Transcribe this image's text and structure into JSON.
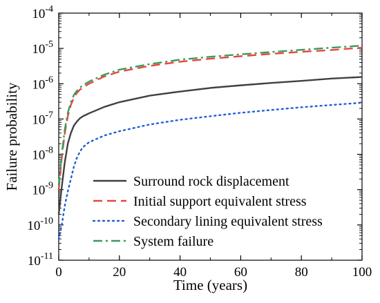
{
  "chart_data": {
    "type": "line",
    "title": "",
    "xlabel": "Time (years)",
    "ylabel": "Failure probability",
    "xlim": [
      0,
      100
    ],
    "ylim_exponent": [
      -11,
      -4
    ],
    "y_scale": "log",
    "xticks": [
      0,
      20,
      40,
      60,
      80,
      100
    ],
    "xtick_labels": [
      "0",
      "20",
      "40",
      "60",
      "80",
      "100"
    ],
    "ytick_base": "10",
    "ytick_exponents": [
      "-11",
      "-10",
      "-9",
      "-8",
      "-7",
      "-6",
      "-5",
      "-4"
    ],
    "grid": false,
    "legend_position": "lower-right",
    "series": [
      {
        "name": "Surround rock displacement",
        "color": "#404040",
        "dash": "solid",
        "x": [
          0,
          1,
          2,
          3,
          4,
          5,
          6,
          7,
          8,
          10,
          15,
          20,
          30,
          40,
          50,
          60,
          70,
          80,
          90,
          100
        ],
        "y": [
          2e-10,
          1.2e-09,
          6e-09,
          2e-08,
          4e-08,
          6.5e-08,
          8.5e-08,
          1.05e-07,
          1.2e-07,
          1.45e-07,
          2.2e-07,
          3e-07,
          4.6e-07,
          6e-07,
          7.6e-07,
          9e-07,
          1.05e-06,
          1.2e-06,
          1.4e-06,
          1.55e-06
        ]
      },
      {
        "name": "Initial support equivalent stress",
        "color": "#e8453c",
        "dash": "dashed",
        "x": [
          0,
          1,
          2,
          3,
          4,
          5,
          6,
          7,
          8,
          10,
          15,
          20,
          30,
          40,
          50,
          60,
          70,
          80,
          90,
          100
        ],
        "y": [
          1e-09,
          8e-09,
          4e-08,
          1.2e-07,
          2.5e-07,
          4e-07,
          5.5e-07,
          6.8e-07,
          7.8e-07,
          1e-06,
          1.6e-06,
          2.2e-06,
          3.2e-06,
          4.2e-06,
          5.1e-06,
          6e-06,
          7e-06,
          8e-06,
          9e-06,
          1.05e-05
        ]
      },
      {
        "name": "Secondary lining equivalent stress",
        "color": "#1f5fd6",
        "dash": "dotted",
        "x": [
          0,
          1,
          2,
          3,
          4,
          5,
          6,
          7,
          8,
          10,
          15,
          20,
          30,
          40,
          50,
          60,
          70,
          80,
          90,
          100
        ],
        "y": [
          4e-11,
          1e-10,
          3.5e-10,
          9e-10,
          2e-09,
          4.5e-09,
          8e-09,
          1.2e-08,
          1.6e-08,
          2.2e-08,
          3.4e-08,
          4.5e-08,
          7e-08,
          9.5e-08,
          1.2e-07,
          1.5e-07,
          1.8e-07,
          2.15e-07,
          2.5e-07,
          2.9e-07
        ]
      },
      {
        "name": "System failure",
        "color": "#3a9a5b",
        "dash": "dash-dot",
        "x": [
          0,
          1,
          2,
          3,
          4,
          5,
          6,
          7,
          8,
          10,
          15,
          20,
          30,
          40,
          50,
          60,
          70,
          80,
          90,
          100
        ],
        "y": [
          1.3e-09,
          1e-08,
          5e-08,
          1.5e-07,
          3e-07,
          4.8e-07,
          6.3e-07,
          7.8e-07,
          9e-07,
          1.15e-06,
          1.8e-06,
          2.5e-06,
          3.6e-06,
          4.8e-06,
          5.8e-06,
          6.8e-06,
          7.9e-06,
          9.1e-06,
          1.05e-05,
          1.2e-05
        ]
      }
    ]
  }
}
